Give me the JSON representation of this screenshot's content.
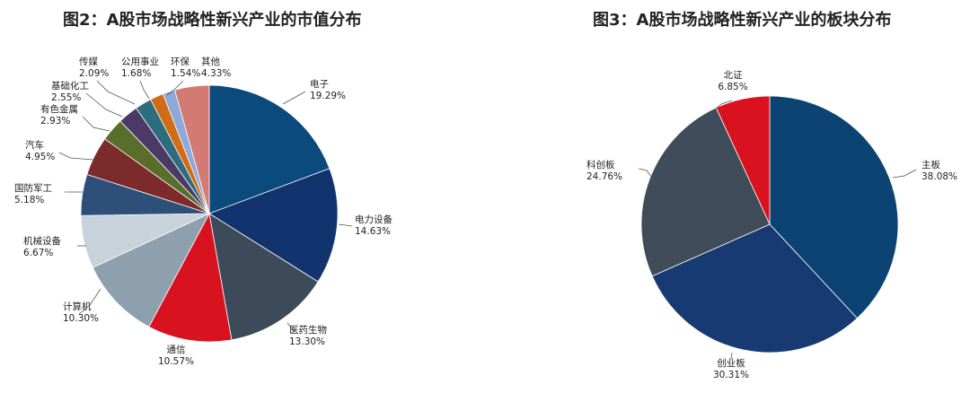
{
  "chart_data": [
    {
      "type": "pie",
      "title": "图2：A股市场战略性新兴产业的市值分布",
      "slices": [
        {
          "name": "电子",
          "value": 19.29,
          "pct_label": "19.29%",
          "color": "#0b4a7d"
        },
        {
          "name": "电力设备",
          "value": 14.63,
          "pct_label": "14.63%",
          "color": "#12346e"
        },
        {
          "name": "医药生物",
          "value": 13.3,
          "pct_label": "13.30%",
          "color": "#3c4a5a"
        },
        {
          "name": "通信",
          "value": 10.57,
          "pct_label": "10.57%",
          "color": "#d9121f"
        },
        {
          "name": "计算机",
          "value": 10.3,
          "pct_label": "10.30%",
          "color": "#8e9fae"
        },
        {
          "name": "机械设备",
          "value": 6.67,
          "pct_label": "6.67%",
          "color": "#c8d2db"
        },
        {
          "name": "国防军工",
          "value": 5.18,
          "pct_label": "5.18%",
          "color": "#2e4f7a"
        },
        {
          "name": "汽车",
          "value": 4.95,
          "pct_label": "4.95%",
          "color": "#7b2b2b"
        },
        {
          "name": "有色金属",
          "value": 2.93,
          "pct_label": "2.93%",
          "color": "#5a6e2c"
        },
        {
          "name": "基础化工",
          "value": 2.55,
          "pct_label": "2.55%",
          "color": "#4b3a66"
        },
        {
          "name": "传媒",
          "value": 2.09,
          "pct_label": "2.09%",
          "color": "#2e6c80"
        },
        {
          "name": "公用事业",
          "value": 1.68,
          "pct_label": "1.68%",
          "color": "#d06b16"
        },
        {
          "name": "环保",
          "value": 1.54,
          "pct_label": "1.54%",
          "color": "#8ea8d8"
        },
        {
          "name": "其他",
          "value": 4.33,
          "pct_label": "4.33%",
          "color": "#d47a74"
        }
      ]
    },
    {
      "type": "pie",
      "title": "图3：A股市场战略性新兴产业的板块分布",
      "slices": [
        {
          "name": "主板",
          "value": 38.08,
          "pct_label": "38.08%",
          "color": "#0b4373"
        },
        {
          "name": "创业板",
          "value": 30.31,
          "pct_label": "30.31%",
          "color": "#183a72"
        },
        {
          "name": "科创板",
          "value": 24.76,
          "pct_label": "24.76%",
          "color": "#404c5a"
        },
        {
          "name": "北证",
          "value": 6.85,
          "pct_label": "6.85%",
          "color": "#d9121f"
        }
      ]
    }
  ]
}
